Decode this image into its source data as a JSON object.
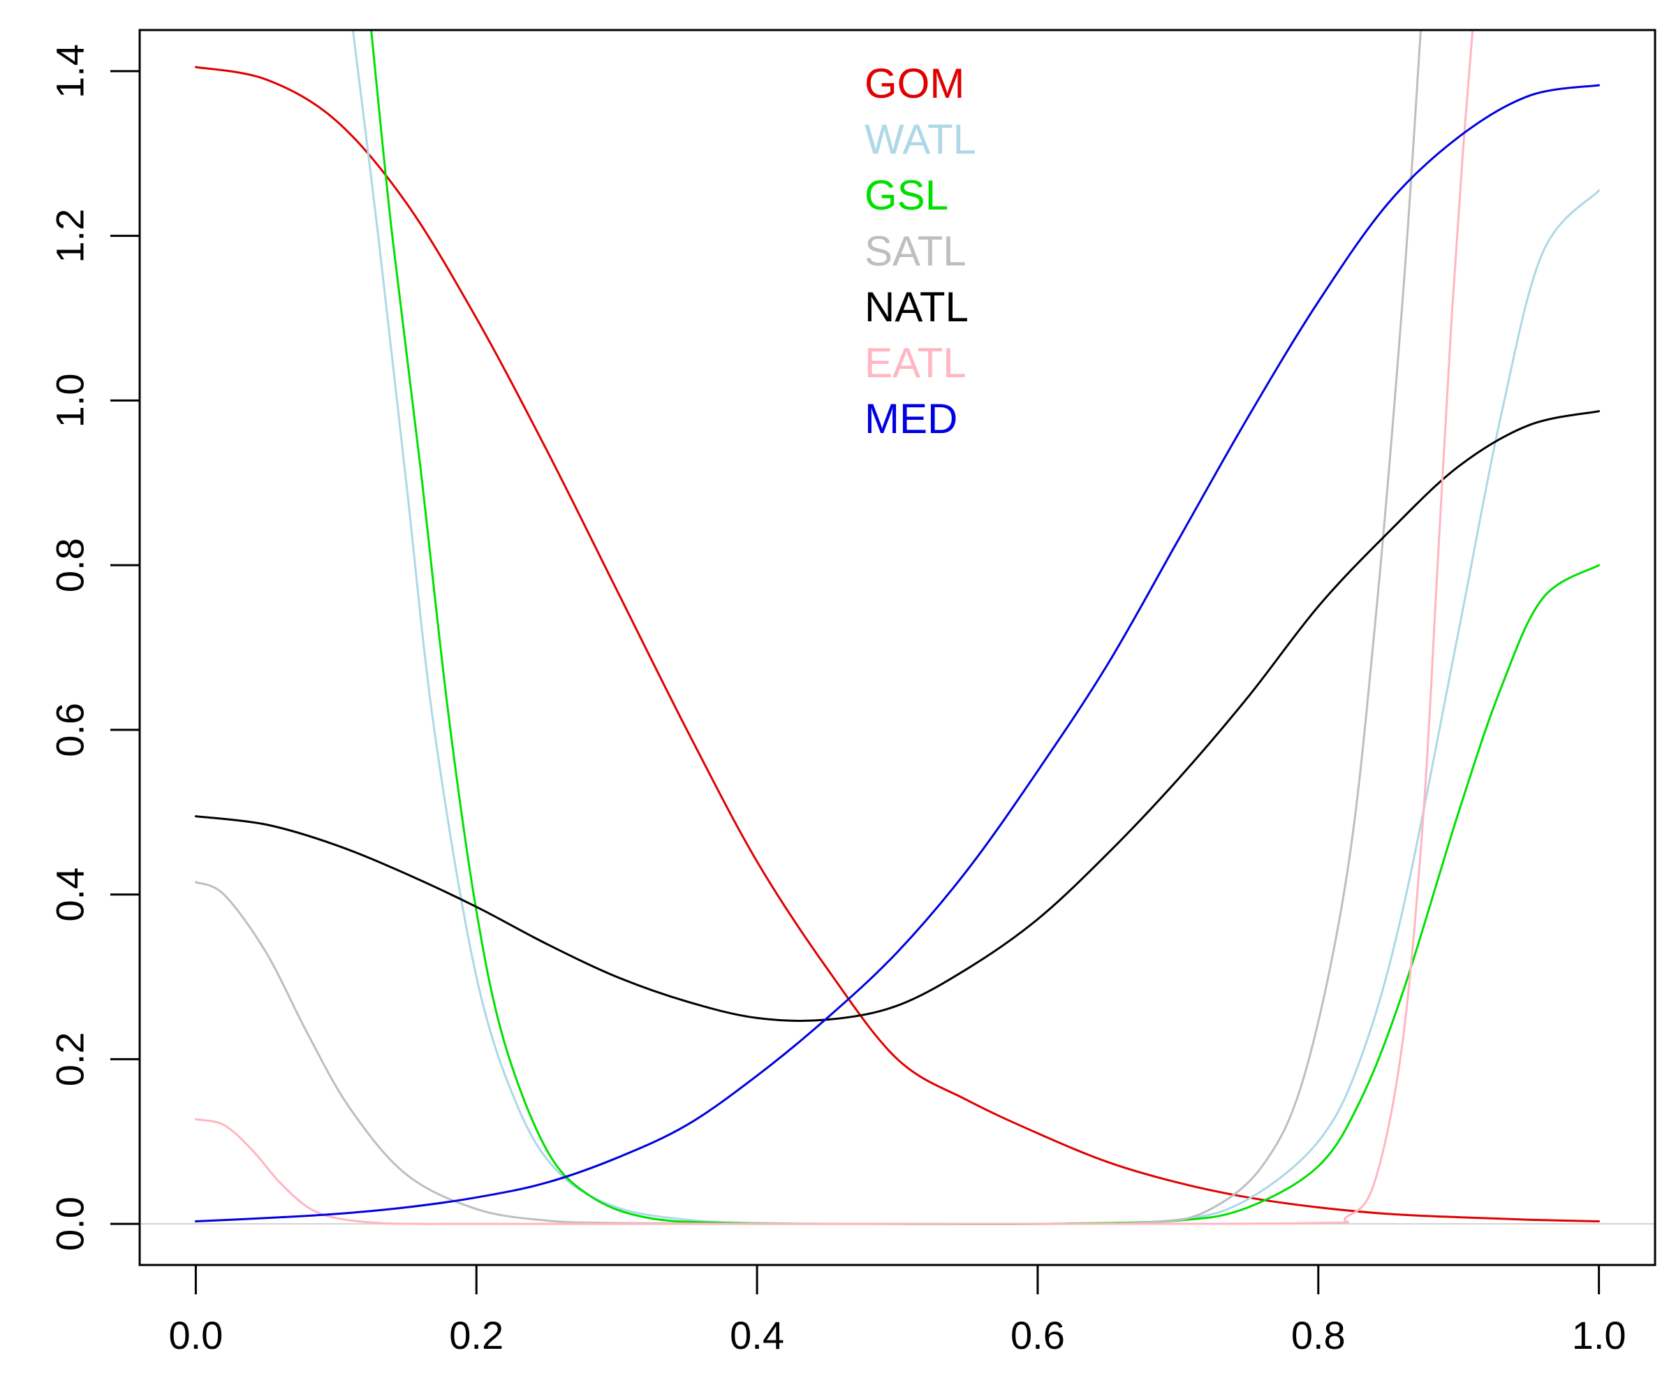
{
  "chart_data": {
    "type": "line",
    "title": "",
    "xlabel": "",
    "ylabel": "",
    "xlim": [
      -0.04,
      1.04
    ],
    "ylim": [
      -0.05,
      1.45
    ],
    "grid": false,
    "legend_position": "top-center",
    "x_ticks": [
      "0.0",
      "0.2",
      "0.4",
      "0.6",
      "0.8",
      "1.0"
    ],
    "y_ticks": [
      "0.0",
      "0.2",
      "0.4",
      "0.6",
      "0.8",
      "1.0",
      "1.2",
      "1.4"
    ],
    "reference_line": {
      "y": 0,
      "color": "#d3d3d3"
    },
    "series": [
      {
        "name": "GOM",
        "color": "#e00000",
        "x": [
          0,
          0.05,
          0.1,
          0.15,
          0.2,
          0.25,
          0.3,
          0.35,
          0.4,
          0.45,
          0.5,
          0.55,
          0.6,
          0.65,
          0.7,
          0.75,
          0.8,
          0.85,
          0.9,
          0.95,
          1.0
        ],
        "y": [
          1.405,
          1.39,
          1.34,
          1.24,
          1.1,
          0.94,
          0.77,
          0.6,
          0.44,
          0.31,
          0.2,
          0.15,
          0.11,
          0.075,
          0.05,
          0.032,
          0.02,
          0.012,
          0.008,
          0.005,
          0.003
        ]
      },
      {
        "name": "WATL",
        "color": "#add8e6",
        "x": [
          0.112,
          0.13,
          0.15,
          0.17,
          0.2,
          0.23,
          0.26,
          0.3,
          0.35,
          0.4,
          0.5,
          0.6,
          0.7,
          0.75,
          0.8,
          0.83,
          0.86,
          0.9,
          0.93,
          0.96,
          1.0
        ],
        "y": [
          1.45,
          1.2,
          0.9,
          0.6,
          0.3,
          0.14,
          0.06,
          0.02,
          0.005,
          0.001,
          0,
          0,
          0.005,
          0.03,
          0.1,
          0.2,
          0.38,
          0.72,
          0.98,
          1.18,
          1.255
        ]
      },
      {
        "name": "GSL",
        "color": "#00e000",
        "x": [
          0.125,
          0.14,
          0.16,
          0.18,
          0.2,
          0.22,
          0.25,
          0.28,
          0.32,
          0.38,
          0.5,
          0.6,
          0.7,
          0.75,
          0.8,
          0.83,
          0.86,
          0.9,
          0.93,
          0.96,
          1.0
        ],
        "y": [
          1.45,
          1.2,
          0.92,
          0.62,
          0.38,
          0.22,
          0.09,
          0.035,
          0.008,
          0.001,
          0,
          0,
          0.004,
          0.02,
          0.07,
          0.15,
          0.28,
          0.5,
          0.65,
          0.76,
          0.8
        ]
      },
      {
        "name": "SATL",
        "color": "#bebebe",
        "x": [
          0,
          0.02,
          0.05,
          0.08,
          0.11,
          0.15,
          0.2,
          0.25,
          0.3,
          0.4,
          0.5,
          0.6,
          0.68,
          0.72,
          0.76,
          0.79,
          0.82,
          0.84,
          0.86,
          0.873
        ],
        "y": [
          0.415,
          0.4,
          0.33,
          0.23,
          0.14,
          0.06,
          0.018,
          0.004,
          0.001,
          0,
          0,
          0,
          0.002,
          0.015,
          0.07,
          0.18,
          0.42,
          0.72,
          1.12,
          1.45
        ]
      },
      {
        "name": "NATL",
        "color": "#000000",
        "x": [
          0,
          0.05,
          0.1,
          0.15,
          0.2,
          0.25,
          0.3,
          0.35,
          0.4,
          0.45,
          0.5,
          0.55,
          0.6,
          0.65,
          0.7,
          0.75,
          0.8,
          0.85,
          0.9,
          0.95,
          1.0
        ],
        "y": [
          0.495,
          0.485,
          0.46,
          0.425,
          0.385,
          0.34,
          0.3,
          0.27,
          0.25,
          0.248,
          0.265,
          0.31,
          0.37,
          0.45,
          0.54,
          0.64,
          0.75,
          0.84,
          0.92,
          0.97,
          0.987
        ]
      },
      {
        "name": "EATL",
        "color": "#ffb6c1",
        "x": [
          0,
          0.02,
          0.04,
          0.06,
          0.08,
          0.1,
          0.13,
          0.16,
          0.2,
          0.4,
          0.6,
          0.8,
          0.82,
          0.84,
          0.86,
          0.875,
          0.885,
          0.895,
          0.903,
          0.91
        ],
        "y": [
          0.127,
          0.12,
          0.09,
          0.05,
          0.02,
          0.007,
          0.001,
          0,
          0,
          0,
          0,
          0.001,
          0.008,
          0.05,
          0.22,
          0.5,
          0.8,
          1.1,
          1.3,
          1.45
        ]
      },
      {
        "name": "MED",
        "color": "#0000e0",
        "x": [
          0,
          0.05,
          0.1,
          0.15,
          0.2,
          0.25,
          0.3,
          0.35,
          0.4,
          0.45,
          0.5,
          0.55,
          0.6,
          0.65,
          0.7,
          0.75,
          0.8,
          0.85,
          0.9,
          0.95,
          1.0
        ],
        "y": [
          0.003,
          0.007,
          0.012,
          0.02,
          0.032,
          0.05,
          0.08,
          0.12,
          0.18,
          0.25,
          0.33,
          0.43,
          0.55,
          0.68,
          0.83,
          0.98,
          1.12,
          1.24,
          1.32,
          1.37,
          1.383
        ]
      }
    ]
  }
}
